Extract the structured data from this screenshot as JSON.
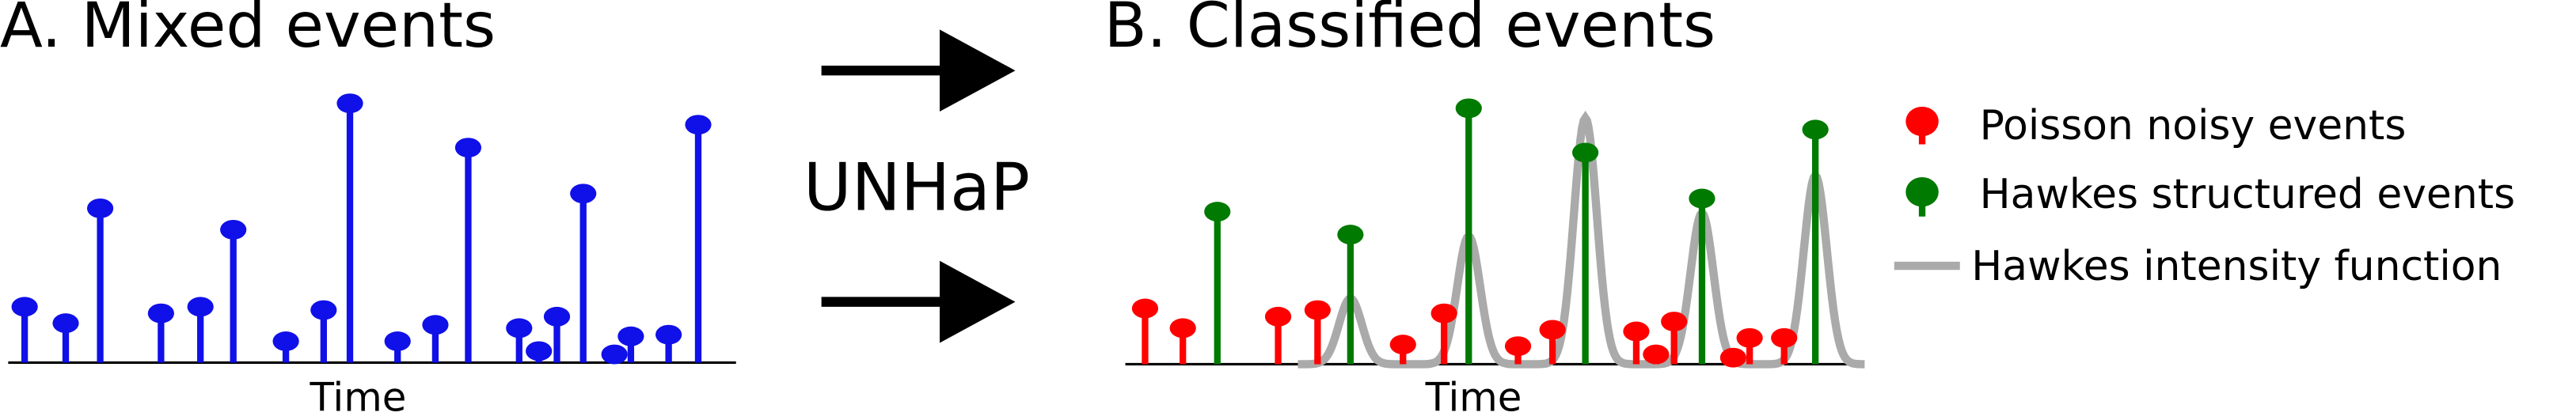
{
  "panel_a": {
    "title": "A. Mixed events",
    "x_label": "Time"
  },
  "method": {
    "label": "UNHaP"
  },
  "panel_b": {
    "title": "B. Classified events",
    "x_label": "Time"
  },
  "legend": {
    "items": [
      {
        "label": "Poisson noisy events"
      },
      {
        "label": "Hawkes structured events"
      },
      {
        "label": "Hawkes intensity function"
      }
    ]
  }
}
